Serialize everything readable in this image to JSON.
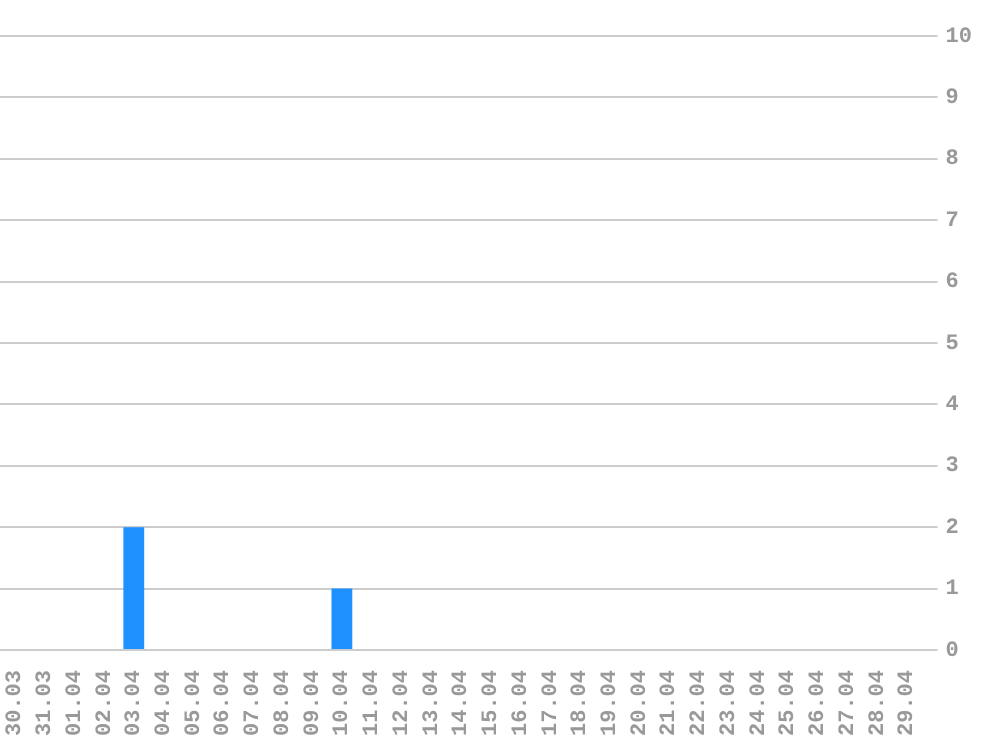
{
  "chart_data": {
    "type": "bar",
    "categories": [
      "30.03",
      "31.03",
      "01.04",
      "02.04",
      "03.04",
      "04.04",
      "05.04",
      "06.04",
      "07.04",
      "08.04",
      "09.04",
      "10.04",
      "11.04",
      "12.04",
      "13.04",
      "14.04",
      "15.04",
      "16.04",
      "17.04",
      "18.04",
      "19.04",
      "20.04",
      "21.04",
      "22.04",
      "23.04",
      "24.04",
      "25.04",
      "26.04",
      "27.04",
      "28.04",
      "29.04"
    ],
    "values": [
      0,
      0,
      0,
      0,
      2,
      0,
      0,
      0,
      0,
      0,
      0,
      1,
      0,
      0,
      0,
      0,
      0,
      0,
      0,
      0,
      0,
      0,
      0,
      0,
      0,
      0,
      0,
      0,
      0,
      0,
      0
    ],
    "color": "#1e90ff",
    "ylim": [
      0,
      10
    ],
    "yticks": [
      0,
      1,
      2,
      3,
      4,
      5,
      6,
      7,
      8,
      9,
      10
    ],
    "grid": "y",
    "legend": false
  }
}
